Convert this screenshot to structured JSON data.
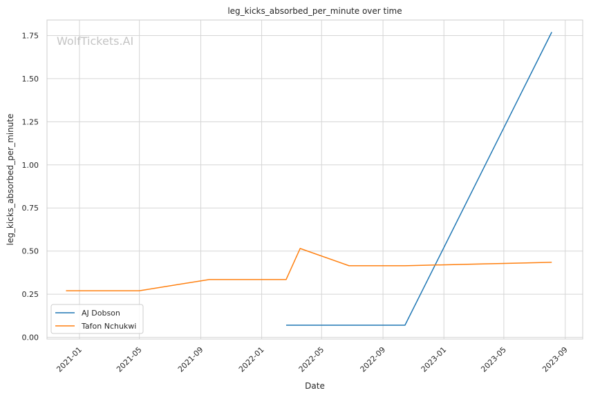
{
  "chart_data": {
    "type": "line",
    "title": "leg_kicks_absorbed_per_minute over time",
    "xlabel": "Date",
    "ylabel": "leg_kicks_absorbed_per_minute",
    "watermark": "WolfTickets.AI",
    "x_ticks": [
      "2021-01",
      "2021-05",
      "2021-09",
      "2022-01",
      "2022-05",
      "2022-09",
      "2023-01",
      "2023-05",
      "2023-09"
    ],
    "y_ticks": [
      "0.00",
      "0.25",
      "0.50",
      "0.75",
      "1.00",
      "1.25",
      "1.50",
      "1.75"
    ],
    "xlim": [
      "2020-10-28",
      "2023-10-06"
    ],
    "ylim": [
      -0.01,
      1.84
    ],
    "grid": true,
    "legend_position": "lower-left",
    "series": [
      {
        "name": "AJ Dobson",
        "color": "#1f77b4",
        "points": [
          {
            "x": "2022-02-19",
            "y": 0.07
          },
          {
            "x": "2022-10-15",
            "y": 0.07
          },
          {
            "x": "2023-08-05",
            "y": 1.77
          }
        ]
      },
      {
        "name": "Tafon Nchukwi",
        "color": "#ff7f0e",
        "points": [
          {
            "x": "2020-12-05",
            "y": 0.27
          },
          {
            "x": "2021-05-01",
            "y": 0.27
          },
          {
            "x": "2021-09-18",
            "y": 0.335
          },
          {
            "x": "2022-02-19",
            "y": 0.335
          },
          {
            "x": "2022-03-19",
            "y": 0.515
          },
          {
            "x": "2022-06-25",
            "y": 0.415
          },
          {
            "x": "2022-10-15",
            "y": 0.415
          },
          {
            "x": "2023-08-05",
            "y": 0.435
          }
        ]
      }
    ]
  }
}
